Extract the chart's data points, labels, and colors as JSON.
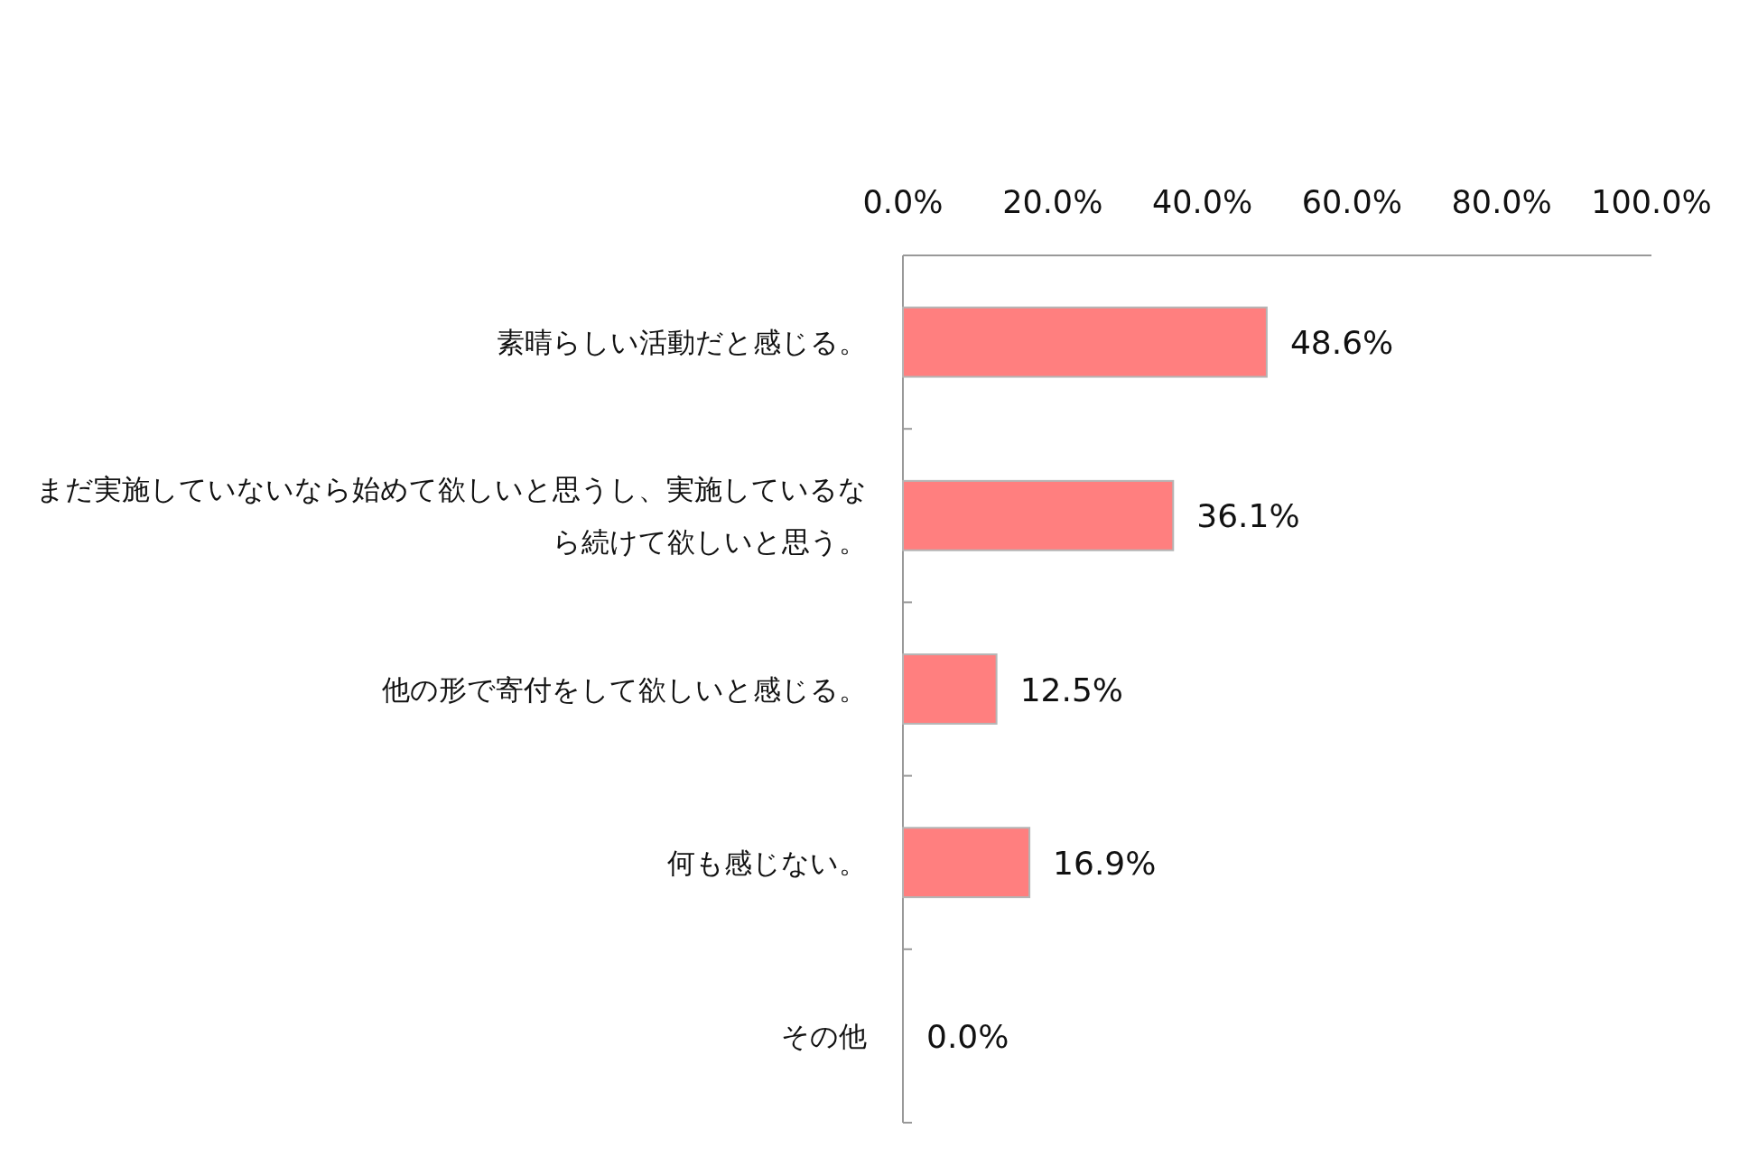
{
  "chart_data": {
    "type": "bar",
    "orientation": "horizontal",
    "categories": [
      "素晴らしい活動だと感じる。",
      "まだ実施していないなら始めて欲しいと思うし、実施しているなら続けて欲しいと思う。",
      "他の形で寄付をして欲しいと感じる。",
      "何も感じない。",
      "その他"
    ],
    "values": [
      48.6,
      36.1,
      12.5,
      16.9,
      0.0
    ],
    "value_labels": [
      "48.6%",
      "36.1%",
      "12.5%",
      "16.9%",
      "0.0%"
    ],
    "color": "#ff7f7f",
    "xlim": [
      0,
      100
    ],
    "xticks": [
      {
        "value": 0,
        "label": "0.0%"
      },
      {
        "value": 20,
        "label": "20.0%"
      },
      {
        "value": 40,
        "label": "40.0%"
      },
      {
        "value": 60,
        "label": "60.0%"
      },
      {
        "value": 80,
        "label": "80.0%"
      },
      {
        "value": 100,
        "label": "100.0%"
      }
    ]
  }
}
